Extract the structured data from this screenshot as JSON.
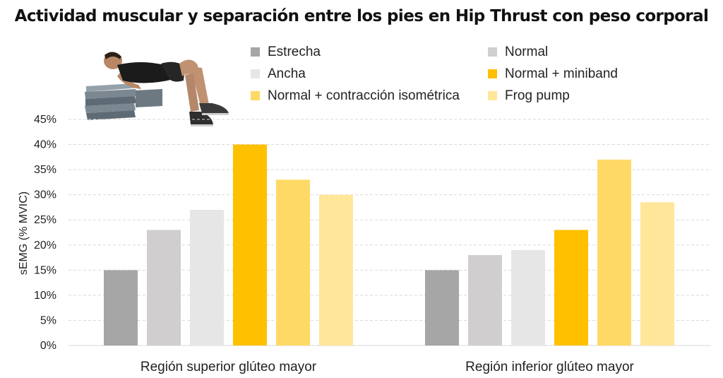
{
  "chart_data": {
    "type": "bar",
    "title": "Actividad muscular y separación entre los pies en Hip Thrust con peso corporal",
    "ylabel": "sEMG (% MVIC)",
    "ylim": [
      0,
      45
    ],
    "yticks": [
      "0%",
      "5%",
      "10%",
      "15%",
      "20%",
      "25%",
      "30%",
      "35%",
      "40%",
      "45%"
    ],
    "grid": true,
    "legend_position": "top",
    "categories": [
      "Región superior glúteo mayor",
      "Región inferior glúteo mayor"
    ],
    "series": [
      {
        "name": "Estrecha",
        "color": "#a6a6a6",
        "values": [
          15,
          15
        ]
      },
      {
        "name": "Normal",
        "color": "#d0cece",
        "values": [
          23,
          18
        ]
      },
      {
        "name": "Ancha",
        "color": "#e7e6e6",
        "values": [
          27,
          19
        ]
      },
      {
        "name": "Normal + miniband",
        "color": "#ffc000",
        "values": [
          40,
          23
        ]
      },
      {
        "name": "Normal + contracción isométrica",
        "color": "#ffd966",
        "values": [
          33,
          37
        ]
      },
      {
        "name": "Frog pump",
        "color": "#ffe699",
        "values": [
          30,
          28.5
        ]
      }
    ]
  },
  "illustration": {
    "icon": "hip-thrust-illustration-icon"
  }
}
